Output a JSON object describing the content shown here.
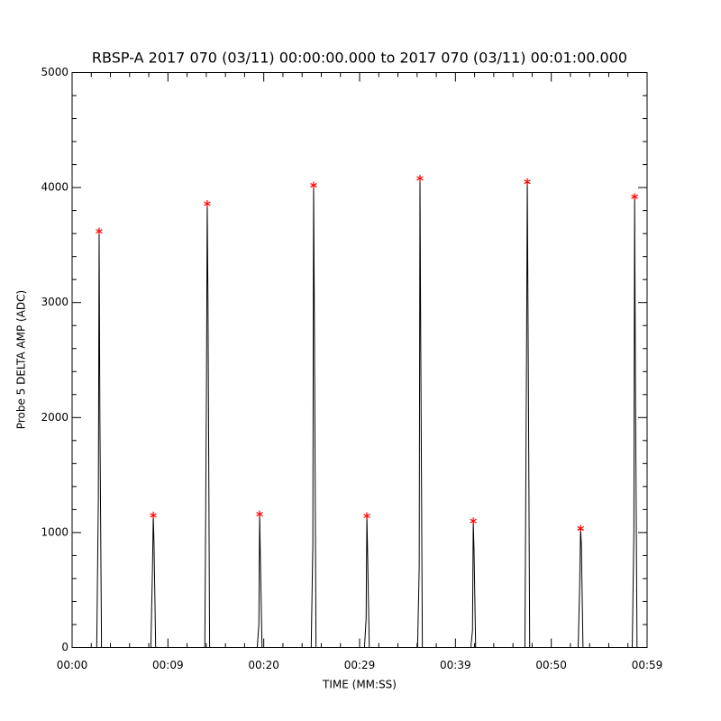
{
  "chart_data": {
    "type": "line",
    "title": "RBSP-A 2017 070 (03/11) 00:00:00.000 to 2017 070 (03/11) 00:01:00.000",
    "x_label": "TIME (MM:SS)",
    "y_label": "Probe 5 DELTA AMP (ADC)",
    "xlim": [
      0,
      60
    ],
    "xticks": [
      {
        "value": 0,
        "label": "00:00"
      },
      {
        "value": 10,
        "label": "00:09"
      },
      {
        "value": 20,
        "label": "00:20"
      },
      {
        "value": 30,
        "label": "00:29"
      },
      {
        "value": 40,
        "label": "00:39"
      },
      {
        "value": 50,
        "label": "00:50"
      },
      {
        "value": 60,
        "label": "00:59"
      }
    ],
    "ylim": [
      0,
      5000
    ],
    "yticks": [
      0,
      1000,
      2000,
      3000,
      4000,
      5000
    ],
    "series": [
      {
        "color": "#000000",
        "marker": "none",
        "x": [
          2.57,
          2.74,
          2.82,
          2.9,
          3.07,
          null,
          8.22,
          8.39,
          8.47,
          8.55,
          8.72,
          null,
          13.85,
          14.02,
          14.1,
          14.18,
          14.35,
          null,
          19.32,
          19.49,
          19.57,
          19.65,
          19.82,
          null,
          24.95,
          25.12,
          25.2,
          25.28,
          25.45,
          null,
          30.51,
          30.68,
          30.76,
          30.84,
          31.01,
          null,
          36.05,
          36.22,
          36.3,
          36.38,
          36.55,
          null,
          41.61,
          41.78,
          41.86,
          41.94,
          42.11,
          null,
          47.25,
          47.42,
          47.5,
          47.58,
          47.75,
          null,
          52.81,
          52.98,
          53.06,
          53.14,
          53.31,
          null,
          58.45,
          58.62,
          58.7,
          58.78,
          58.95
        ],
        "values": [
          0,
          1300,
          3620,
          2000,
          0,
          null,
          0,
          700,
          1150,
          900,
          0,
          null,
          0,
          2250,
          3860,
          3000,
          0,
          null,
          0,
          200,
          1160,
          750,
          0,
          null,
          0,
          900,
          4020,
          2880,
          0,
          null,
          0,
          250,
          1145,
          800,
          0,
          null,
          0,
          700,
          4080,
          2650,
          0,
          null,
          0,
          150,
          1100,
          850,
          0,
          null,
          0,
          2550,
          4050,
          2820,
          0,
          null,
          0,
          600,
          1035,
          900,
          0,
          null,
          0,
          1000,
          3920,
          2330,
          0
        ]
      },
      {
        "color": "#ff0000",
        "marker": "asterisk",
        "x": [
          2.82,
          8.47,
          14.1,
          19.57,
          25.2,
          30.76,
          36.3,
          41.86,
          47.5,
          53.06,
          58.7
        ],
        "values": [
          3620,
          1150,
          3860,
          1160,
          4020,
          1145,
          4080,
          1100,
          4050,
          1035,
          3920
        ]
      }
    ]
  }
}
